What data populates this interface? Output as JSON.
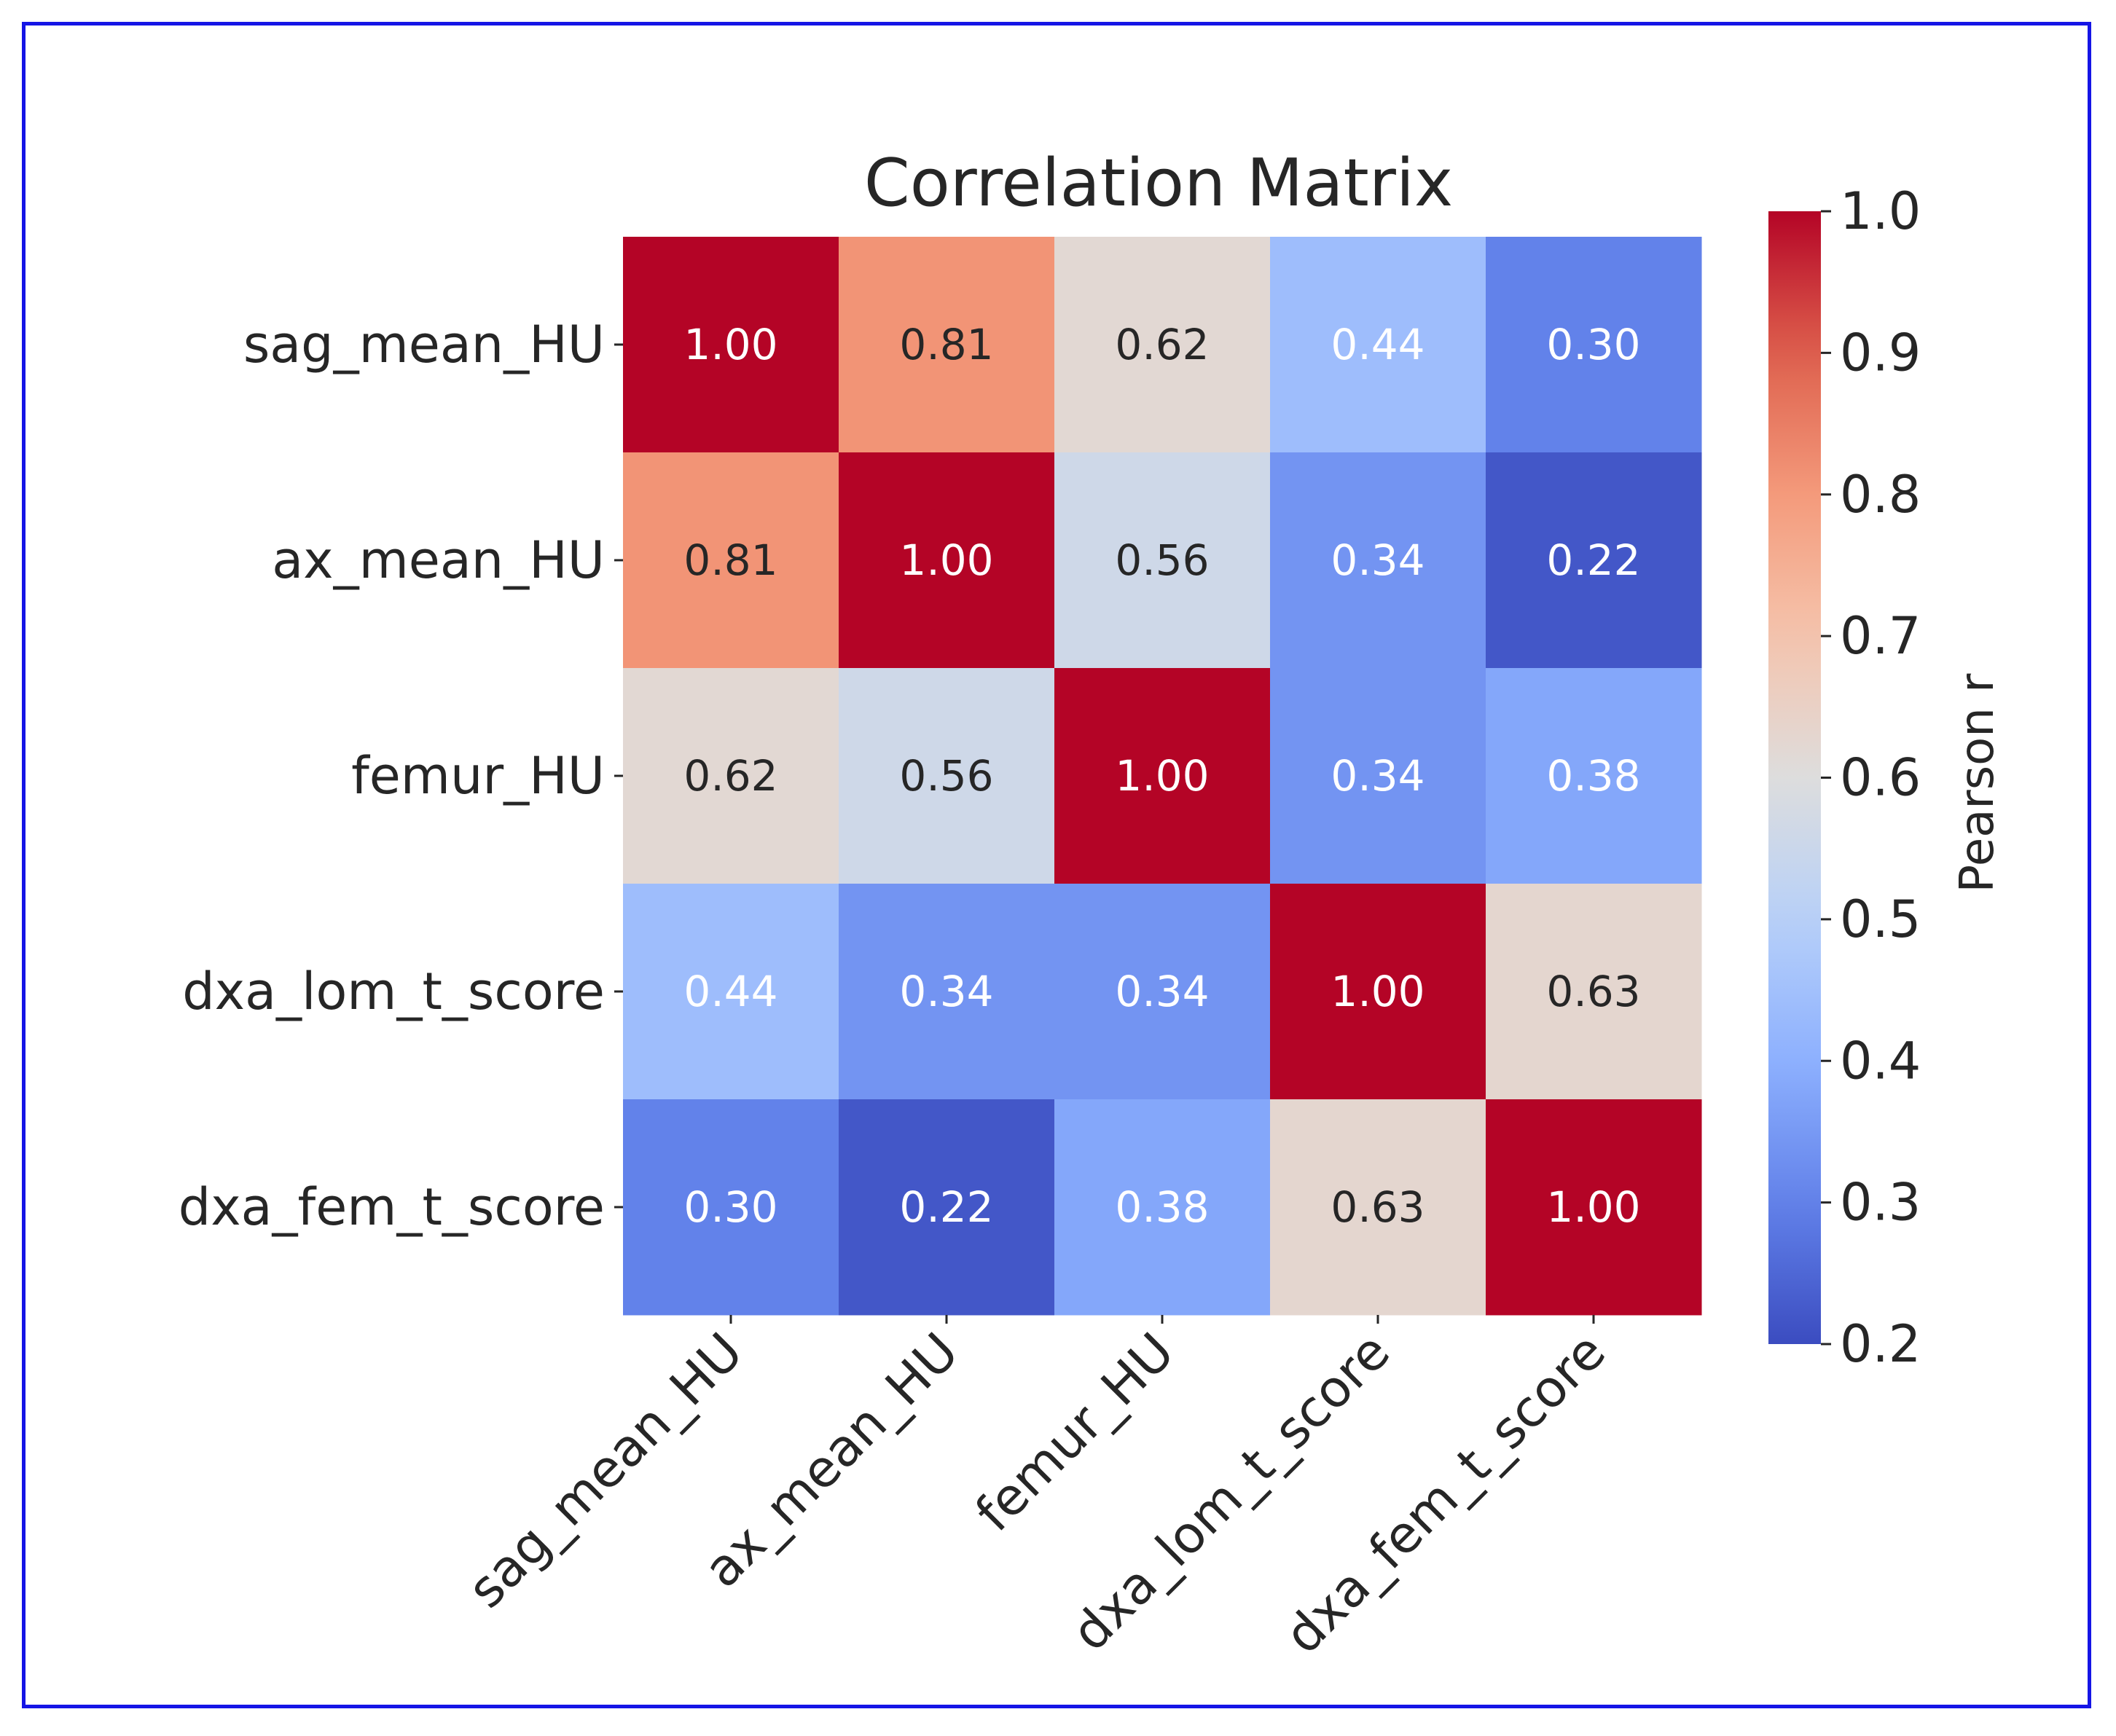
{
  "chart_data": {
    "type": "heatmap",
    "title": "Correlation Matrix",
    "row_labels": [
      "sag_mean_HU",
      "ax_mean_HU",
      "femur_HU",
      "dxa_lom_t_score",
      "dxa_fem_t_score"
    ],
    "col_labels": [
      "sag_mean_HU",
      "ax_mean_HU",
      "femur_HU",
      "dxa_lom_t_score",
      "dxa_fem_t_score"
    ],
    "values": [
      [
        1.0,
        0.81,
        0.62,
        0.44,
        0.3
      ],
      [
        0.81,
        1.0,
        0.56,
        0.34,
        0.22
      ],
      [
        0.62,
        0.56,
        1.0,
        0.34,
        0.38
      ],
      [
        0.44,
        0.34,
        0.34,
        1.0,
        0.63
      ],
      [
        0.3,
        0.22,
        0.38,
        0.63,
        1.0
      ]
    ],
    "cell_labels": [
      [
        "1.00",
        "0.81",
        "0.62",
        "0.44",
        "0.30"
      ],
      [
        "0.81",
        "1.00",
        "0.56",
        "0.34",
        "0.22"
      ],
      [
        "0.62",
        "0.56",
        "1.00",
        "0.34",
        "0.38"
      ],
      [
        "0.44",
        "0.34",
        "0.34",
        "1.00",
        "0.63"
      ],
      [
        "0.30",
        "0.22",
        "0.38",
        "0.63",
        "1.00"
      ]
    ],
    "colormap": "coolwarm",
    "vmin": 0.2,
    "vmax": 1.0,
    "colorbar": {
      "label": "Pearson r",
      "ticks": [
        0.2,
        0.3,
        0.4,
        0.5,
        0.6,
        0.7,
        0.8,
        0.9,
        1.0
      ],
      "tick_labels": [
        "0.2",
        "0.3",
        "0.4",
        "0.5",
        "0.6",
        "0.7",
        "0.8",
        "0.9",
        "1.0"
      ]
    }
  },
  "colors": {
    "frame_border": "#1515e6",
    "text": "#262626",
    "cell_text_dark": "#262626",
    "cell_text_light": "#ffffff"
  }
}
